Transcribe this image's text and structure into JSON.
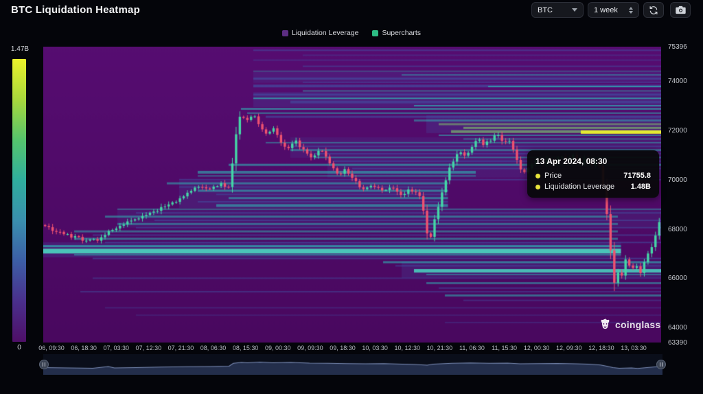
{
  "header": {
    "title": "BTC Liquidation Heatmap",
    "symbol_select": {
      "value": "BTC"
    },
    "range_select": {
      "value": "1 week"
    }
  },
  "legend": {
    "items": [
      {
        "label": "Liquidation Leverage",
        "color": "#5c2d82"
      },
      {
        "label": "Supercharts",
        "color": "#2dbd85"
      }
    ]
  },
  "colorbar": {
    "max_label": "1.47B",
    "min_label": "0",
    "stops": [
      "#ebf22b",
      "#a8d83c",
      "#55c46c",
      "#2fae9e",
      "#3a8fae",
      "#3c5ea6",
      "#4a2f8c",
      "#4e0f67"
    ]
  },
  "tooltip": {
    "date": "13 Apr 2024, 08:30",
    "dot_color": "#e9e43c",
    "rows": [
      {
        "label": "Price",
        "value": "71755.8"
      },
      {
        "label": "Liquidation Leverage",
        "value": "1.48B"
      }
    ]
  },
  "watermark": {
    "text": "coinglass"
  },
  "chart_data": {
    "type": "heatmap",
    "title": "BTC Liquidation Heatmap",
    "overlay": "candlestick",
    "y_axis": {
      "min": 63390,
      "max": 75396,
      "labels": [
        75396,
        74000,
        72000,
        70000,
        68000,
        66000,
        64000,
        63390
      ]
    },
    "x_axis": {
      "labels": [
        "06, 09:30",
        "06, 18:30",
        "07, 03:30",
        "07, 12:30",
        "07, 21:30",
        "08, 06:30",
        "08, 15:30",
        "09, 00:30",
        "09, 09:30",
        "09, 18:30",
        "10, 03:30",
        "10, 12:30",
        "10, 21:30",
        "11, 06:30",
        "11, 15:30",
        "12, 00:30",
        "12, 09:30",
        "12, 18:30",
        "13, 03:30"
      ]
    },
    "colors": {
      "bg_top": "#560d71",
      "bg_bottom": "#49085f",
      "up": "#45d6a6",
      "down": "#ef5270",
      "teal": "#2fb5b5",
      "tealBright": "#4ae2c4",
      "blue": "#4058a8",
      "green": "#83d468",
      "yellow": "#e9ef2f"
    },
    "band_fields": [
      "price",
      "x0_frac",
      "x1_frac",
      "height_px",
      "color",
      "alpha"
    ],
    "heatmap_bands": [
      [
        74150,
        0.34,
        1,
        16,
        "blue",
        0.18
      ],
      [
        73250,
        0.34,
        1,
        22,
        "blue",
        0.22
      ],
      [
        72250,
        0.62,
        1,
        26,
        "blue",
        0.25
      ],
      [
        71300,
        0.4,
        1,
        30,
        "blue",
        0.16
      ],
      [
        70500,
        0.46,
        1,
        30,
        "blue",
        0.18
      ],
      [
        69400,
        0.22,
        0.655,
        40,
        "blue",
        0.2
      ],
      [
        68400,
        0.12,
        1,
        26,
        "blue",
        0.16
      ],
      [
        67150,
        0,
        0.935,
        22,
        "blue",
        0.25
      ],
      [
        66350,
        0.58,
        1,
        24,
        "blue",
        0.22
      ],
      [
        75250,
        0.34,
        1,
        2,
        "blue",
        0.5
      ],
      [
        75050,
        0.42,
        1,
        2,
        "blue",
        0.3
      ],
      [
        74850,
        0.34,
        1,
        2,
        "blue",
        0.35
      ],
      [
        74600,
        0.42,
        1,
        2,
        "blue",
        0.45
      ],
      [
        74400,
        0.34,
        1,
        2,
        "teal",
        0.35
      ],
      [
        74250,
        0.58,
        1,
        2,
        "teal",
        0.5
      ],
      [
        74100,
        0.34,
        1,
        3,
        "blue",
        0.55
      ],
      [
        73950,
        0.42,
        1,
        2,
        "blue",
        0.4
      ],
      [
        73800,
        0.34,
        1,
        4,
        "blue",
        0.6
      ],
      [
        73780,
        0.72,
        1,
        2,
        "teal",
        0.7
      ],
      [
        73600,
        0.42,
        1,
        2,
        "teal",
        0.5
      ],
      [
        73450,
        0.34,
        1,
        3,
        "blue",
        0.55
      ],
      [
        73300,
        0.34,
        1,
        2,
        "teal",
        0.75
      ],
      [
        73150,
        0.4,
        1,
        4,
        "blue",
        0.5
      ],
      [
        73000,
        0.6,
        1,
        2,
        "teal",
        0.7
      ],
      [
        72870,
        0.32,
        1,
        2,
        "teal",
        0.8
      ],
      [
        72700,
        0.33,
        1,
        2,
        "teal",
        0.6
      ],
      [
        72550,
        0.36,
        1,
        3,
        "blue",
        0.55
      ],
      [
        72400,
        0.6,
        1,
        3,
        "teal",
        0.5
      ],
      [
        72250,
        0.64,
        1,
        3,
        "green",
        0.5
      ],
      [
        72100,
        0.68,
        1,
        3,
        "green",
        0.6
      ],
      [
        71950,
        0.66,
        1,
        4,
        "green",
        0.6
      ],
      [
        71930,
        0.87,
        1,
        5,
        "yellow",
        0.95
      ],
      [
        71800,
        0.64,
        1,
        2,
        "teal",
        0.6
      ],
      [
        71650,
        0.68,
        1,
        2,
        "teal",
        0.45
      ],
      [
        71500,
        0.36,
        1,
        2,
        "teal",
        0.5
      ],
      [
        71350,
        0.4,
        1,
        2,
        "blue",
        0.5
      ],
      [
        71200,
        0.4,
        1,
        3,
        "teal",
        0.5
      ],
      [
        71050,
        0.44,
        1,
        2,
        "blue",
        0.5
      ],
      [
        70900,
        0.44,
        1,
        2,
        "teal",
        0.5
      ],
      [
        70750,
        0.47,
        1,
        2,
        "blue",
        0.55
      ],
      [
        70600,
        0.3,
        1,
        3,
        "teal",
        0.6
      ],
      [
        70450,
        0.5,
        1,
        2,
        "blue",
        0.5
      ],
      [
        70300,
        0.25,
        0.7,
        4,
        "teal",
        0.6
      ],
      [
        70150,
        0.25,
        0.7,
        2,
        "teal",
        0.5
      ],
      [
        70000,
        0.22,
        1,
        2,
        "blue",
        0.5
      ],
      [
        69850,
        0.2,
        0.655,
        3,
        "teal",
        0.55
      ],
      [
        69700,
        0.22,
        0.655,
        2,
        "blue",
        0.5
      ],
      [
        69550,
        0.25,
        0.655,
        3,
        "teal",
        0.6
      ],
      [
        69400,
        0.28,
        0.655,
        2,
        "blue",
        0.45
      ],
      [
        69250,
        0.3,
        0.655,
        3,
        "teal",
        0.55
      ],
      [
        69100,
        0.25,
        0.655,
        2,
        "blue",
        0.5
      ],
      [
        68950,
        0.28,
        0.655,
        4,
        "teal",
        0.6
      ],
      [
        68800,
        0.12,
        1,
        2,
        "teal",
        0.5
      ],
      [
        68650,
        0.15,
        1,
        2,
        "blue",
        0.5
      ],
      [
        68500,
        0.1,
        0.93,
        3,
        "teal",
        0.55
      ],
      [
        68350,
        0.18,
        1,
        2,
        "blue",
        0.5
      ],
      [
        68200,
        0.12,
        0.93,
        3,
        "teal",
        0.5
      ],
      [
        68050,
        0.15,
        1,
        2,
        "blue",
        0.45
      ],
      [
        67900,
        0.05,
        0.93,
        3,
        "teal",
        0.5
      ],
      [
        67750,
        0.08,
        1,
        2,
        "blue",
        0.5
      ],
      [
        67600,
        0.05,
        0.93,
        3,
        "teal",
        0.55
      ],
      [
        67450,
        0.1,
        1,
        2,
        "blue",
        0.5
      ],
      [
        67300,
        0,
        0.935,
        3,
        "teal",
        0.7
      ],
      [
        67100,
        0,
        0.935,
        7,
        "tealBright",
        0.85
      ],
      [
        66950,
        0.05,
        0.935,
        2,
        "teal",
        0.6
      ],
      [
        66800,
        0.08,
        1,
        2,
        "blue",
        0.55
      ],
      [
        66650,
        0.55,
        1,
        3,
        "teal",
        0.6
      ],
      [
        66500,
        0.57,
        1,
        2,
        "blue",
        0.5
      ],
      [
        66300,
        0.6,
        1,
        5,
        "tealBright",
        0.8
      ],
      [
        66150,
        0.62,
        1,
        2,
        "teal",
        0.5
      ],
      [
        66000,
        0.08,
        1,
        2,
        "blue",
        0.4
      ],
      [
        65800,
        0.62,
        1,
        3,
        "teal",
        0.5
      ],
      [
        65600,
        0.64,
        1,
        2,
        "blue",
        0.5
      ],
      [
        65450,
        0.06,
        1,
        2,
        "blue",
        0.45
      ],
      [
        65300,
        0.65,
        1,
        3,
        "teal",
        0.55
      ],
      [
        65100,
        0.68,
        1,
        2,
        "blue",
        0.4
      ],
      [
        64800,
        0.1,
        1,
        2,
        "blue",
        0.3
      ],
      [
        64500,
        0.15,
        1,
        2,
        "blue",
        0.25
      ],
      [
        64200,
        0.65,
        1,
        2,
        "blue",
        0.3
      ]
    ],
    "price_path": [
      [
        0.0,
        68100
      ],
      [
        0.02,
        67900
      ],
      [
        0.05,
        67650
      ],
      [
        0.075,
        67500
      ],
      [
        0.09,
        67600
      ],
      [
        0.105,
        67900
      ],
      [
        0.12,
        68100
      ],
      [
        0.14,
        68350
      ],
      [
        0.16,
        68500
      ],
      [
        0.185,
        68800
      ],
      [
        0.21,
        69100
      ],
      [
        0.235,
        69500
      ],
      [
        0.255,
        69750
      ],
      [
        0.27,
        69600
      ],
      [
        0.285,
        69800
      ],
      [
        0.3,
        69700
      ],
      [
        0.306,
        70800
      ],
      [
        0.312,
        72000
      ],
      [
        0.318,
        72600
      ],
      [
        0.328,
        72400
      ],
      [
        0.338,
        72700
      ],
      [
        0.348,
        72200
      ],
      [
        0.36,
        71900
      ],
      [
        0.372,
        72100
      ],
      [
        0.384,
        71500
      ],
      [
        0.396,
        71300
      ],
      [
        0.408,
        71600
      ],
      [
        0.42,
        71200
      ],
      [
        0.435,
        70900
      ],
      [
        0.45,
        71200
      ],
      [
        0.465,
        70600
      ],
      [
        0.478,
        70200
      ],
      [
        0.49,
        70400
      ],
      [
        0.505,
        69900
      ],
      [
        0.52,
        69600
      ],
      [
        0.535,
        69800
      ],
      [
        0.55,
        69500
      ],
      [
        0.565,
        69700
      ],
      [
        0.58,
        69400
      ],
      [
        0.595,
        69600
      ],
      [
        0.61,
        69300
      ],
      [
        0.618,
        68600
      ],
      [
        0.625,
        67300
      ],
      [
        0.632,
        68200
      ],
      [
        0.64,
        68900
      ],
      [
        0.648,
        69600
      ],
      [
        0.656,
        70300
      ],
      [
        0.665,
        70800
      ],
      [
        0.675,
        71100
      ],
      [
        0.685,
        70900
      ],
      [
        0.695,
        71300
      ],
      [
        0.705,
        71700
      ],
      [
        0.715,
        71400
      ],
      [
        0.725,
        71600
      ],
      [
        0.735,
        71900
      ],
      [
        0.745,
        71500
      ],
      [
        0.755,
        71600
      ],
      [
        0.765,
        71100
      ],
      [
        0.772,
        70500
      ],
      [
        0.78,
        70300
      ],
      [
        0.79,
        70600
      ],
      [
        0.8,
        70800
      ],
      [
        0.81,
        70600
      ],
      [
        0.82,
        70900
      ],
      [
        0.83,
        70700
      ],
      [
        0.84,
        71000
      ],
      [
        0.85,
        70800
      ],
      [
        0.86,
        71000
      ],
      [
        0.87,
        70700
      ],
      [
        0.88,
        70900
      ],
      [
        0.89,
        70600
      ],
      [
        0.9,
        70800
      ],
      [
        0.906,
        70300
      ],
      [
        0.912,
        69200
      ],
      [
        0.918,
        67800
      ],
      [
        0.924,
        66300
      ],
      [
        0.929,
        65400
      ],
      [
        0.934,
        66400
      ],
      [
        0.939,
        66100
      ],
      [
        0.944,
        66800
      ],
      [
        0.949,
        66400
      ],
      [
        0.954,
        66700
      ],
      [
        0.959,
        66200
      ],
      [
        0.964,
        66500
      ],
      [
        0.969,
        66100
      ],
      [
        0.974,
        66600
      ],
      [
        0.98,
        66900
      ],
      [
        0.986,
        67200
      ],
      [
        0.993,
        67600
      ],
      [
        1.0,
        68300
      ]
    ],
    "candles_count": 165,
    "navigator": {
      "fill": "rgba(56,72,116,0.55)",
      "line": "rgba(132,150,192,0.95)",
      "path": [
        [
          0,
          0.3
        ],
        [
          0.04,
          0.28
        ],
        [
          0.08,
          0.26
        ],
        [
          0.105,
          0.36
        ],
        [
          0.115,
          0.28
        ],
        [
          0.15,
          0.3
        ],
        [
          0.19,
          0.33
        ],
        [
          0.23,
          0.35
        ],
        [
          0.27,
          0.36
        ],
        [
          0.3,
          0.38
        ],
        [
          0.307,
          0.55
        ],
        [
          0.32,
          0.6
        ],
        [
          0.33,
          0.58
        ],
        [
          0.35,
          0.62
        ],
        [
          0.37,
          0.58
        ],
        [
          0.4,
          0.6
        ],
        [
          0.43,
          0.56
        ],
        [
          0.46,
          0.55
        ],
        [
          0.49,
          0.53
        ],
        [
          0.52,
          0.52
        ],
        [
          0.55,
          0.53
        ],
        [
          0.58,
          0.5
        ],
        [
          0.6,
          0.48
        ],
        [
          0.62,
          0.44
        ],
        [
          0.63,
          0.5
        ],
        [
          0.66,
          0.55
        ],
        [
          0.69,
          0.57
        ],
        [
          0.72,
          0.55
        ],
        [
          0.75,
          0.56
        ],
        [
          0.77,
          0.52
        ],
        [
          0.8,
          0.53
        ],
        [
          0.83,
          0.54
        ],
        [
          0.86,
          0.52
        ],
        [
          0.88,
          0.5
        ],
        [
          0.9,
          0.45
        ],
        [
          0.91,
          0.38
        ],
        [
          0.92,
          0.3
        ],
        [
          0.93,
          0.26
        ],
        [
          0.95,
          0.28
        ],
        [
          0.96,
          0.25
        ],
        [
          0.975,
          0.3
        ],
        [
          1.0,
          0.38
        ]
      ]
    }
  }
}
